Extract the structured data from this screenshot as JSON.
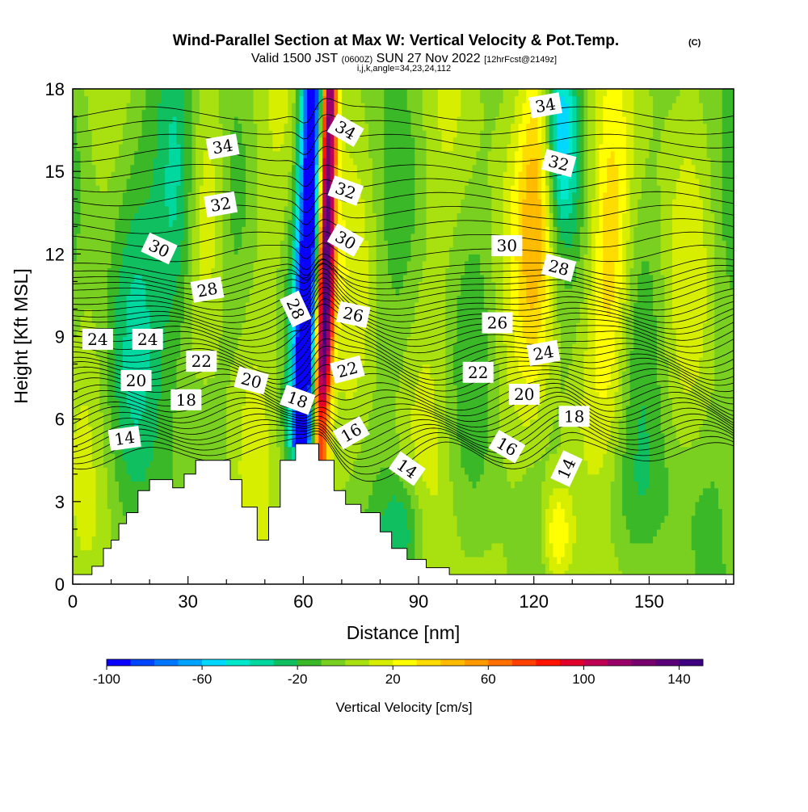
{
  "chart_data": {
    "type": "heatmap",
    "title": "Wind-Parallel Section at Max W: Vertical Velocity & Pot.Temp.",
    "title_suffix": "(C)",
    "subtitle_prefix": "Valid 1500 JST",
    "subtitle_zulu": "(0600Z)",
    "subtitle_date": "SUN 27 Nov 2022",
    "subtitle_forecast": "[12hrFcst@2149z]",
    "subtitle_params": "i,j,k,angle=34,23,24,112",
    "xlabel": "Distance [nm]",
    "ylabel": "Height [Kft MSL]",
    "xlim": [
      0,
      172
    ],
    "ylim": [
      0,
      18
    ],
    "x_ticks": [
      0,
      30,
      60,
      90,
      120,
      150
    ],
    "x_tick_labels": [
      "0",
      "30",
      "60",
      "90",
      "120",
      "150"
    ],
    "y_ticks": [
      0,
      3,
      6,
      9,
      12,
      15,
      18
    ],
    "y_tick_labels": [
      "0",
      "3",
      "6",
      "9",
      "12",
      "15",
      "18"
    ],
    "colorbar": {
      "label": "Vertical Velocity [cm/s]",
      "min": -100,
      "max": 150,
      "step": 10,
      "tick_values": [
        -100,
        -60,
        -20,
        20,
        60,
        100,
        140
      ],
      "tick_labels": [
        "-100",
        "-60",
        "-20",
        "20",
        "60",
        "100",
        "140"
      ],
      "colors": [
        "#0a00ff",
        "#0045ff",
        "#0077ff",
        "#00a4ff",
        "#00d8ff",
        "#00e8cc",
        "#00d8a0",
        "#10c060",
        "#3ab828",
        "#7ad020",
        "#a8e010",
        "#d8ee00",
        "#ffff00",
        "#ffdc00",
        "#ffbb00",
        "#ff9900",
        "#ff7000",
        "#ff4000",
        "#ff1400",
        "#e0002a",
        "#c00052",
        "#990068",
        "#78006c",
        "#5a0078",
        "#3c0080"
      ]
    },
    "terrain": [
      [
        0,
        0.35
      ],
      [
        5,
        0.35
      ],
      [
        5,
        0.65
      ],
      [
        8,
        0.65
      ],
      [
        8,
        1.3
      ],
      [
        10,
        1.3
      ],
      [
        10,
        1.6
      ],
      [
        12,
        1.6
      ],
      [
        12,
        2.2
      ],
      [
        14,
        2.2
      ],
      [
        14,
        2.6
      ],
      [
        17,
        2.6
      ],
      [
        17,
        3.4
      ],
      [
        20,
        3.4
      ],
      [
        20,
        3.8
      ],
      [
        26,
        3.8
      ],
      [
        26,
        3.5
      ],
      [
        29,
        3.5
      ],
      [
        29,
        4
      ],
      [
        32,
        4
      ],
      [
        32,
        4.5
      ],
      [
        41,
        4.5
      ],
      [
        41,
        3.8
      ],
      [
        44,
        3.8
      ],
      [
        44,
        2.8
      ],
      [
        48,
        2.8
      ],
      [
        48,
        1.6
      ],
      [
        51,
        1.6
      ],
      [
        51,
        2.8
      ],
      [
        54,
        2.8
      ],
      [
        54,
        4.5
      ],
      [
        58,
        4.5
      ],
      [
        58,
        5.1
      ],
      [
        64,
        5.1
      ],
      [
        64,
        4.5
      ],
      [
        68,
        4.5
      ],
      [
        68,
        3.4
      ],
      [
        71,
        3.4
      ],
      [
        71,
        2.9
      ],
      [
        75,
        2.9
      ],
      [
        75,
        2.6
      ],
      [
        80,
        2.6
      ],
      [
        80,
        1.9
      ],
      [
        83,
        1.9
      ],
      [
        83,
        1.3
      ],
      [
        87,
        1.3
      ],
      [
        87,
        0.9
      ],
      [
        92,
        0.9
      ],
      [
        92,
        0.6
      ],
      [
        98,
        0.6
      ],
      [
        98,
        0.35
      ],
      [
        172,
        0.35
      ]
    ],
    "contours": [
      {
        "level": 14,
        "base": 4.7
      },
      {
        "level": 16,
        "base": 5.5
      },
      {
        "level": 18,
        "base": 6.3
      },
      {
        "level": 20,
        "base": 7.2
      },
      {
        "level": 22,
        "base": 8.0
      },
      {
        "level": 24,
        "base": 8.9
      },
      {
        "level": 26,
        "base": 9.7
      },
      {
        "level": 28,
        "base": 10.6
      },
      {
        "level": 30,
        "base": 11.5
      },
      {
        "level": 32,
        "base": 13.5
      },
      {
        "level": 34,
        "base": 15.6
      }
    ],
    "contour_labels": [
      {
        "text": "14",
        "x": 13.5,
        "y": 5.3,
        "angle": -8
      },
      {
        "text": "14",
        "x": 87,
        "y": 4.2,
        "angle": 35
      },
      {
        "text": "14",
        "x": 128.5,
        "y": 4.2,
        "angle": -65
      },
      {
        "text": "16",
        "x": 72.5,
        "y": 5.5,
        "angle": -30
      },
      {
        "text": "16",
        "x": 113,
        "y": 5,
        "angle": 30
      },
      {
        "text": "18",
        "x": 29.5,
        "y": 6.7,
        "angle": 0
      },
      {
        "text": "18",
        "x": 58.5,
        "y": 6.7,
        "angle": 20
      },
      {
        "text": "18",
        "x": 130.5,
        "y": 6.1,
        "angle": 0
      },
      {
        "text": "20",
        "x": 16.5,
        "y": 7.4,
        "angle": 0
      },
      {
        "text": "20",
        "x": 46.5,
        "y": 7.4,
        "angle": 15
      },
      {
        "text": "20",
        "x": 117.5,
        "y": 6.9,
        "angle": 0
      },
      {
        "text": "22",
        "x": 33.5,
        "y": 8.1,
        "angle": 0
      },
      {
        "text": "22",
        "x": 71.5,
        "y": 7.8,
        "angle": -15
      },
      {
        "text": "22",
        "x": 105.5,
        "y": 7.7,
        "angle": 0
      },
      {
        "text": "24",
        "x": 6.5,
        "y": 8.9,
        "angle": 0
      },
      {
        "text": "24",
        "x": 19.5,
        "y": 8.9,
        "angle": 0
      },
      {
        "text": "24",
        "x": 122.5,
        "y": 8.4,
        "angle": -10
      },
      {
        "text": "26",
        "x": 73,
        "y": 9.8,
        "angle": 12
      },
      {
        "text": "26",
        "x": 110.5,
        "y": 9.5,
        "angle": 0
      },
      {
        "text": "28",
        "x": 35,
        "y": 10.7,
        "angle": -10
      },
      {
        "text": "28",
        "x": 58,
        "y": 10,
        "angle": 65
      },
      {
        "text": "28",
        "x": 126.5,
        "y": 11.5,
        "angle": 15
      },
      {
        "text": "30",
        "x": 22.5,
        "y": 12.2,
        "angle": 25
      },
      {
        "text": "30",
        "x": 71,
        "y": 12.5,
        "angle": 30
      },
      {
        "text": "30",
        "x": 113,
        "y": 12.3,
        "angle": 0
      },
      {
        "text": "32",
        "x": 38.5,
        "y": 13.8,
        "angle": -10
      },
      {
        "text": "32",
        "x": 71,
        "y": 14.3,
        "angle": 20
      },
      {
        "text": "32",
        "x": 126.5,
        "y": 15.3,
        "angle": 15
      },
      {
        "text": "34",
        "x": 39,
        "y": 15.9,
        "angle": -10
      },
      {
        "text": "34",
        "x": 71,
        "y": 16.5,
        "angle": 30
      },
      {
        "text": "34",
        "x": 123,
        "y": 17.4,
        "angle": -10
      }
    ]
  }
}
